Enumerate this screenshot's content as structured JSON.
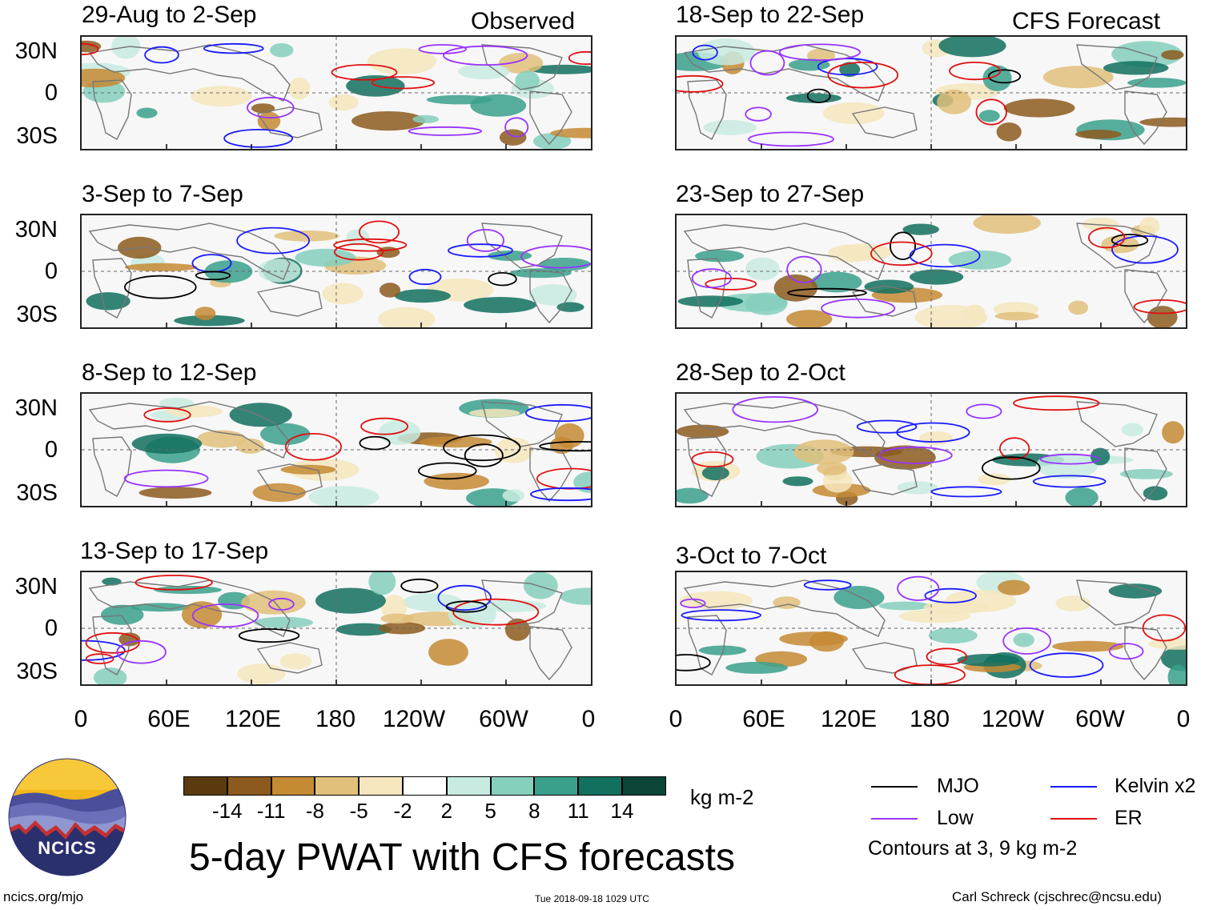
{
  "headers": {
    "observed": "Observed",
    "forecast": "CFS Forecast"
  },
  "panels": [
    {
      "title": "29-Aug to 2-Sep"
    },
    {
      "title": "3-Sep to 7-Sep"
    },
    {
      "title": "8-Sep to 12-Sep"
    },
    {
      "title": "13-Sep to 17-Sep"
    },
    {
      "title": "18-Sep to 22-Sep"
    },
    {
      "title": "23-Sep to 27-Sep"
    },
    {
      "title": "28-Sep to 2-Oct"
    },
    {
      "title": "3-Oct to 7-Oct"
    }
  ],
  "lat_labels": [
    "30N",
    "0",
    "30S"
  ],
  "lon_labels": [
    "0",
    "60E",
    "120E",
    "180",
    "120W",
    "60W",
    "0"
  ],
  "colorbar": {
    "colors": [
      "#5a3a0e",
      "#8c5a1e",
      "#c48a34",
      "#e0c07a",
      "#f5e6bd",
      "#ffffff",
      "#c8ebe1",
      "#85cfbd",
      "#3aa08c",
      "#12705f",
      "#0a4538"
    ],
    "labels": [
      "-14",
      "-11",
      "-8",
      "-5",
      "-2",
      "2",
      "5",
      "8",
      "11",
      "14"
    ],
    "units": "kg m-2"
  },
  "legend": {
    "items": [
      {
        "label": "MJO",
        "color": "#000000"
      },
      {
        "label": "Kelvin x2",
        "color": "#1a1aff"
      },
      {
        "label": "Low",
        "color": "#9933ff"
      },
      {
        "label": "ER",
        "color": "#e01010"
      }
    ],
    "note": "Contours at 3, 9 kg m-2"
  },
  "main_title": "5-day PWAT with CFS forecasts",
  "logo": {
    "text": "NCICS"
  },
  "footer": {
    "url": "ncics.org/mjo",
    "timestamp": "Tue 2018-09-18 1029 UTC",
    "author": "Carl Schreck (cjschrec@ncsu.edu)"
  }
}
